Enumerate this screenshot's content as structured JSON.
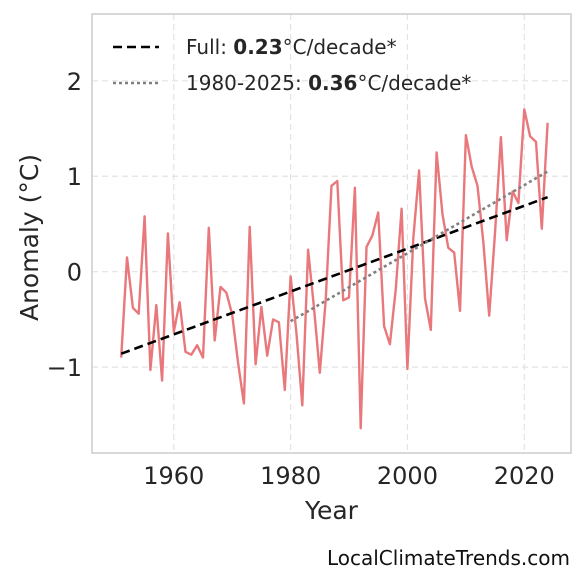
{
  "chart_data": {
    "type": "line",
    "xlabel": "Year",
    "ylabel": "Anomaly (°C)",
    "xlim": [
      1946,
      2028
    ],
    "ylim": [
      -1.9,
      2.7
    ],
    "x_ticks": [
      1960,
      1980,
      2000,
      2020
    ],
    "y_ticks": [
      2,
      1,
      0,
      -1
    ],
    "y_tick_labels": [
      "2",
      "1",
      "0",
      "−1"
    ],
    "grid": true,
    "legend_position": "top-left",
    "series": [
      {
        "style": "solid",
        "color": "#e8787b",
        "x": [
          1951,
          1952,
          1953,
          1954,
          1955,
          1956,
          1957,
          1958,
          1959,
          1960,
          1961,
          1962,
          1963,
          1964,
          1965,
          1966,
          1967,
          1968,
          1969,
          1970,
          1971,
          1972,
          1973,
          1974,
          1975,
          1976,
          1977,
          1978,
          1979,
          1980,
          1981,
          1982,
          1983,
          1984,
          1985,
          1986,
          1987,
          1988,
          1989,
          1990,
          1991,
          1992,
          1993,
          1994,
          1995,
          1996,
          1997,
          1998,
          1999,
          2000,
          2001,
          2002,
          2003,
          2004,
          2005,
          2006,
          2007,
          2008,
          2009,
          2010,
          2011,
          2012,
          2013,
          2014,
          2015,
          2016,
          2017,
          2018,
          2019,
          2020,
          2021,
          2022,
          2023,
          2024
        ],
        "y": [
          -0.9,
          0.15,
          -0.38,
          -0.44,
          0.58,
          -1.03,
          -0.35,
          -1.14,
          0.4,
          -0.63,
          -0.32,
          -0.84,
          -0.87,
          -0.77,
          -0.9,
          0.46,
          -0.72,
          -0.16,
          -0.22,
          -0.45,
          -0.95,
          -1.38,
          0.47,
          -0.97,
          -0.37,
          -0.88,
          -0.5,
          -0.53,
          -1.24,
          -0.05,
          -0.65,
          -1.4,
          0.23,
          -0.38,
          -1.06,
          -0.3,
          0.9,
          0.95,
          -0.3,
          -0.27,
          0.88,
          -1.64,
          0.26,
          0.38,
          0.62,
          -0.57,
          -0.76,
          -0.18,
          0.66,
          -1.02,
          0.35,
          1.06,
          -0.28,
          -0.61,
          1.25,
          0.6,
          0.25,
          0.2,
          -0.41,
          1.43,
          1.1,
          0.9,
          0.3,
          -0.46,
          0.42,
          1.41,
          0.33,
          0.84,
          0.72,
          1.7,
          1.42,
          1.36,
          0.45,
          1.56
        ]
      },
      {
        "name": "Full",
        "rate": "0.23",
        "style": "dashed",
        "color": "#000000",
        "x": [
          1951,
          2024
        ],
        "y": [
          -0.86,
          0.78
        ]
      },
      {
        "name": "1980-2025",
        "rate": "0.36",
        "style": "dotted",
        "color": "#808080",
        "x": [
          1980,
          2024
        ],
        "y": [
          -0.52,
          1.05
        ]
      }
    ]
  },
  "legend": {
    "items": [
      {
        "prefix": "Full: ",
        "bold": "0.23",
        "suffix": "°C/decade*"
      },
      {
        "prefix": "1980-2025: ",
        "bold": "0.36",
        "suffix": "°C/decade*"
      }
    ]
  },
  "footer": {
    "credit": "LocalClimateTrends.com"
  }
}
